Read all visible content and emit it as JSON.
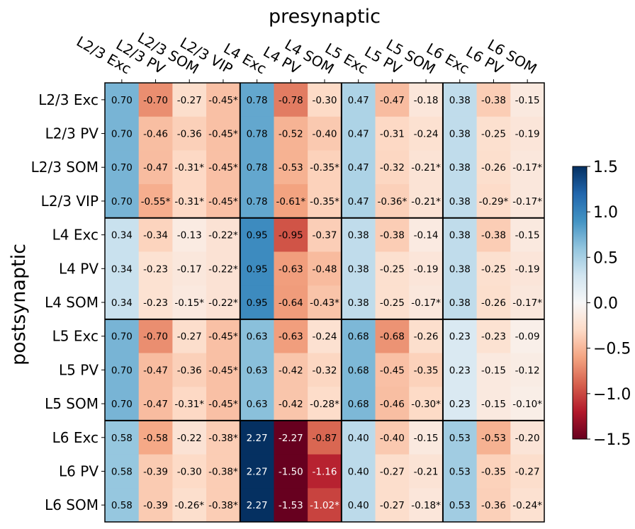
{
  "chart_data": {
    "type": "heatmap",
    "title": "presynaptic",
    "xlabel": "presynaptic",
    "ylabel": "postsynaptic",
    "columns": [
      "L2/3 Exc",
      "L2/3 PV",
      "L2/3 SOM",
      "L2/3 VIP",
      "L4 Exc",
      "L4 PV",
      "L4 SOM",
      "L5 Exc",
      "L5 PV",
      "L5 SOM",
      "L6 Exc",
      "L6 PV",
      "L6 SOM"
    ],
    "rows": [
      "L2/3 Exc",
      "L2/3 PV",
      "L2/3 SOM",
      "L2/3 VIP",
      "L4 Exc",
      "L4 PV",
      "L4 SOM",
      "L5 Exc",
      "L5 PV",
      "L5 SOM",
      "L6 Exc",
      "L6 PV",
      "L6 SOM"
    ],
    "values": [
      [
        0.7,
        -0.7,
        -0.27,
        -0.45,
        0.78,
        -0.78,
        -0.3,
        0.47,
        -0.47,
        -0.18,
        0.38,
        -0.38,
        -0.15
      ],
      [
        0.7,
        -0.46,
        -0.36,
        -0.45,
        0.78,
        -0.52,
        -0.4,
        0.47,
        -0.31,
        -0.24,
        0.38,
        -0.25,
        -0.19
      ],
      [
        0.7,
        -0.47,
        -0.31,
        -0.45,
        0.78,
        -0.53,
        -0.35,
        0.47,
        -0.32,
        -0.21,
        0.38,
        -0.26,
        -0.17
      ],
      [
        0.7,
        -0.55,
        -0.31,
        -0.45,
        0.78,
        -0.61,
        -0.35,
        0.47,
        -0.36,
        -0.21,
        0.38,
        -0.29,
        -0.17
      ],
      [
        0.34,
        -0.34,
        -0.13,
        -0.22,
        0.95,
        -0.95,
        -0.37,
        0.38,
        -0.38,
        -0.14,
        0.38,
        -0.38,
        -0.15
      ],
      [
        0.34,
        -0.23,
        -0.17,
        -0.22,
        0.95,
        -0.63,
        -0.48,
        0.38,
        -0.25,
        -0.19,
        0.38,
        -0.25,
        -0.19
      ],
      [
        0.34,
        -0.23,
        -0.15,
        -0.22,
        0.95,
        -0.64,
        -0.43,
        0.38,
        -0.25,
        -0.17,
        0.38,
        -0.26,
        -0.17
      ],
      [
        0.7,
        -0.7,
        -0.27,
        -0.45,
        0.63,
        -0.63,
        -0.24,
        0.68,
        -0.68,
        -0.26,
        0.23,
        -0.23,
        -0.09
      ],
      [
        0.7,
        -0.47,
        -0.36,
        -0.45,
        0.63,
        -0.42,
        -0.32,
        0.68,
        -0.45,
        -0.35,
        0.23,
        -0.15,
        -0.12
      ],
      [
        0.7,
        -0.47,
        -0.31,
        -0.45,
        0.63,
        -0.42,
        -0.28,
        0.68,
        -0.46,
        -0.3,
        0.23,
        -0.15,
        -0.1
      ],
      [
        0.58,
        -0.58,
        -0.22,
        -0.38,
        2.27,
        -2.27,
        -0.87,
        0.4,
        -0.4,
        -0.15,
        0.53,
        -0.53,
        -0.2
      ],
      [
        0.58,
        -0.39,
        -0.3,
        -0.38,
        2.27,
        -1.5,
        -1.16,
        0.4,
        -0.27,
        -0.21,
        0.53,
        -0.35,
        -0.27
      ],
      [
        0.58,
        -0.39,
        -0.26,
        -0.38,
        2.27,
        -1.53,
        -1.02,
        0.4,
        -0.27,
        -0.18,
        0.53,
        -0.36,
        -0.24
      ]
    ],
    "cell_labels": [
      [
        "0.70",
        "-0.70",
        "-0.27",
        "-0.45*",
        "0.78",
        "-0.78",
        "-0.30",
        "0.47",
        "-0.47",
        "-0.18",
        "0.38",
        "-0.38",
        "-0.15"
      ],
      [
        "0.70",
        "-0.46",
        "-0.36",
        "-0.45*",
        "0.78",
        "-0.52",
        "-0.40",
        "0.47",
        "-0.31",
        "-0.24",
        "0.38",
        "-0.25",
        "-0.19"
      ],
      [
        "0.70",
        "-0.47",
        "-0.31*",
        "-0.45*",
        "0.78",
        "-0.53",
        "-0.35*",
        "0.47",
        "-0.32",
        "-0.21*",
        "0.38",
        "-0.26",
        "-0.17*"
      ],
      [
        "0.70",
        "-0.55*",
        "-0.31*",
        "-0.45*",
        "0.78",
        "-0.61*",
        "-0.35*",
        "0.47",
        "-0.36*",
        "-0.21*",
        "0.38",
        "-0.29*",
        "-0.17*"
      ],
      [
        "0.34",
        "-0.34",
        "-0.13",
        "-0.22*",
        "0.95",
        "-0.95",
        "-0.37",
        "0.38",
        "-0.38",
        "-0.14",
        "0.38",
        "-0.38",
        "-0.15"
      ],
      [
        "0.34",
        "-0.23",
        "-0.17",
        "-0.22*",
        "0.95",
        "-0.63",
        "-0.48",
        "0.38",
        "-0.25",
        "-0.19",
        "0.38",
        "-0.25",
        "-0.19"
      ],
      [
        "0.34",
        "-0.23",
        "-0.15*",
        "-0.22*",
        "0.95",
        "-0.64",
        "-0.43*",
        "0.38",
        "-0.25",
        "-0.17*",
        "0.38",
        "-0.26",
        "-0.17*"
      ],
      [
        "0.70",
        "-0.70",
        "-0.27",
        "-0.45*",
        "0.63",
        "-0.63",
        "-0.24",
        "0.68",
        "-0.68",
        "-0.26",
        "0.23",
        "-0.23",
        "-0.09"
      ],
      [
        "0.70",
        "-0.47",
        "-0.36",
        "-0.45*",
        "0.63",
        "-0.42",
        "-0.32",
        "0.68",
        "-0.45",
        "-0.35",
        "0.23",
        "-0.15",
        "-0.12"
      ],
      [
        "0.70",
        "-0.47",
        "-0.31*",
        "-0.45*",
        "0.63",
        "-0.42",
        "-0.28*",
        "0.68",
        "-0.46",
        "-0.30*",
        "0.23",
        "-0.15",
        "-0.10*"
      ],
      [
        "0.58",
        "-0.58",
        "-0.22",
        "-0.38*",
        "2.27",
        "-2.27",
        "-0.87",
        "0.40",
        "-0.40",
        "-0.15",
        "0.53",
        "-0.53",
        "-0.20"
      ],
      [
        "0.58",
        "-0.39",
        "-0.30",
        "-0.38*",
        "2.27",
        "-1.50",
        "-1.16",
        "0.40",
        "-0.27",
        "-0.21",
        "0.53",
        "-0.35",
        "-0.27"
      ],
      [
        "0.58",
        "-0.39",
        "-0.26*",
        "-0.38*",
        "2.27",
        "-1.53",
        "-1.02*",
        "0.40",
        "-0.27",
        "-0.18*",
        "0.53",
        "-0.36",
        "-0.24*"
      ]
    ],
    "group_boundaries_after_col": [
      4,
      7,
      10
    ],
    "group_boundaries_after_row": [
      4,
      7,
      10
    ],
    "colormap": "RdBu",
    "clim": [
      -1.5,
      1.5
    ],
    "colorbar_ticks": [
      "1.5",
      "1.0",
      "0.5",
      "0.0",
      "−0.5",
      "−1.0",
      "−1.5"
    ],
    "colorbar_tick_values": [
      1.5,
      1.0,
      0.5,
      0.0,
      -0.5,
      -1.0,
      -1.5
    ],
    "legend_position": "right"
  }
}
